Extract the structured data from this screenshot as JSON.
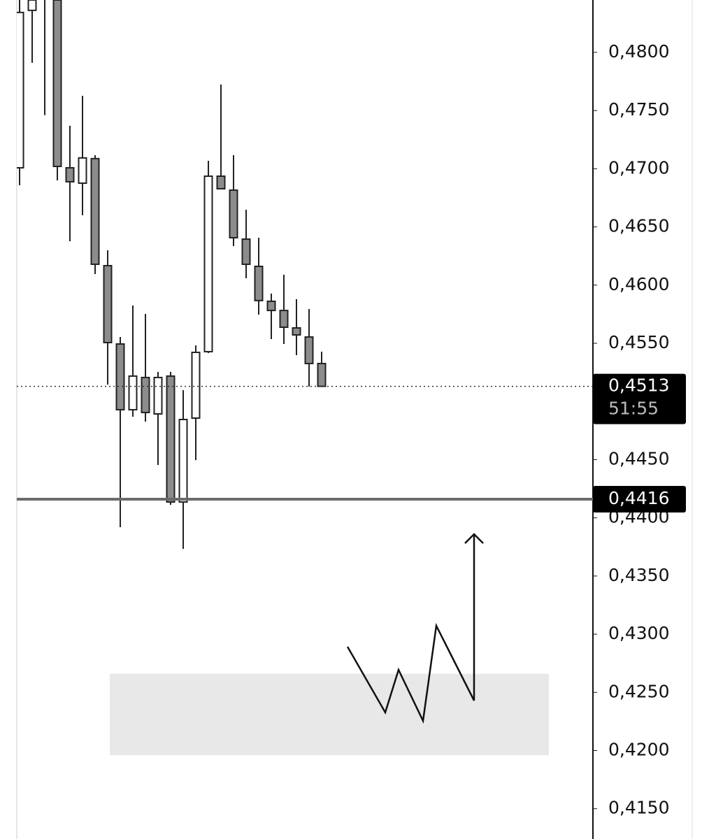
{
  "chart_data": {
    "type": "candlestick",
    "open": [
      0.47008,
      0.48361,
      null,
      null,
      0.47008,
      0.46876,
      0.47087,
      0.46167,
      0.45494,
      0.44929,
      0.45206,
      0.44893,
      0.45218,
      0.44136,
      0.44857,
      0.45428,
      0.46936,
      0.46816,
      0.46395,
      0.46161,
      0.45861,
      0.45782,
      0.45632,
      0.45554,
      0.45326
    ],
    "high": [
      null,
      null,
      null,
      null,
      0.47369,
      0.47627,
      0.47117,
      0.46299,
      0.45554,
      0.45825,
      0.45752,
      0.45254,
      0.45254,
      0.45097,
      0.45482,
      0.47068,
      0.47724,
      0.47117,
      0.46648,
      0.46407,
      0.45927,
      0.46089,
      0.45879,
      0.45794,
      0.45428
    ],
    "low": [
      0.46858,
      0.4791,
      0.4746,
      0.469,
      0.46377,
      0.466,
      0.46095,
      0.45145,
      0.4392,
      0.44869,
      0.44827,
      0.44454,
      0.44112,
      0.43733,
      0.44496,
      0.45416,
      0.46828,
      0.46335,
      0.46059,
      0.45746,
      0.45536,
      0.45494,
      0.45398,
      0.45127,
      0.4513
    ],
    "close": [
      0.48343,
      null,
      null,
      0.4702,
      0.46888,
      0.47093,
      0.46179,
      0.45506,
      0.44929,
      0.45218,
      0.44905,
      0.45206,
      0.44136,
      0.44845,
      0.45422,
      0.46936,
      0.46828,
      0.46407,
      0.46179,
      0.45867,
      0.45782,
      0.45638,
      0.45572,
      0.45326,
      0.4513
    ],
    "up_color": "#ffffff",
    "down_color": "#8c8c8c",
    "ylim": [
      0.4124,
      0.4845
    ],
    "yticks": [
      {
        "value": 0.48,
        "label": "0,4800"
      },
      {
        "value": 0.475,
        "label": "0,4750"
      },
      {
        "value": 0.47,
        "label": "0,4700"
      },
      {
        "value": 0.465,
        "label": "0,4650"
      },
      {
        "value": 0.46,
        "label": "0,4600"
      },
      {
        "value": 0.455,
        "label": "0,4550"
      },
      {
        "value": 0.45,
        "label": "0,4500"
      },
      {
        "value": 0.445,
        "label": "0,4450"
      },
      {
        "value": 0.44,
        "label": "0,4400"
      },
      {
        "value": 0.435,
        "label": "0,4350"
      },
      {
        "value": 0.43,
        "label": "0,4300"
      },
      {
        "value": 0.425,
        "label": "0,4250"
      },
      {
        "value": 0.42,
        "label": "0,4200"
      },
      {
        "value": 0.415,
        "label": "0,4150"
      }
    ],
    "last_price": {
      "value": 0.4513,
      "label": "0,4513",
      "countdown": "51:55"
    },
    "level": {
      "value": 0.4416,
      "label": "0,4416"
    },
    "zone": [
      0.4196,
      0.4266
    ]
  }
}
